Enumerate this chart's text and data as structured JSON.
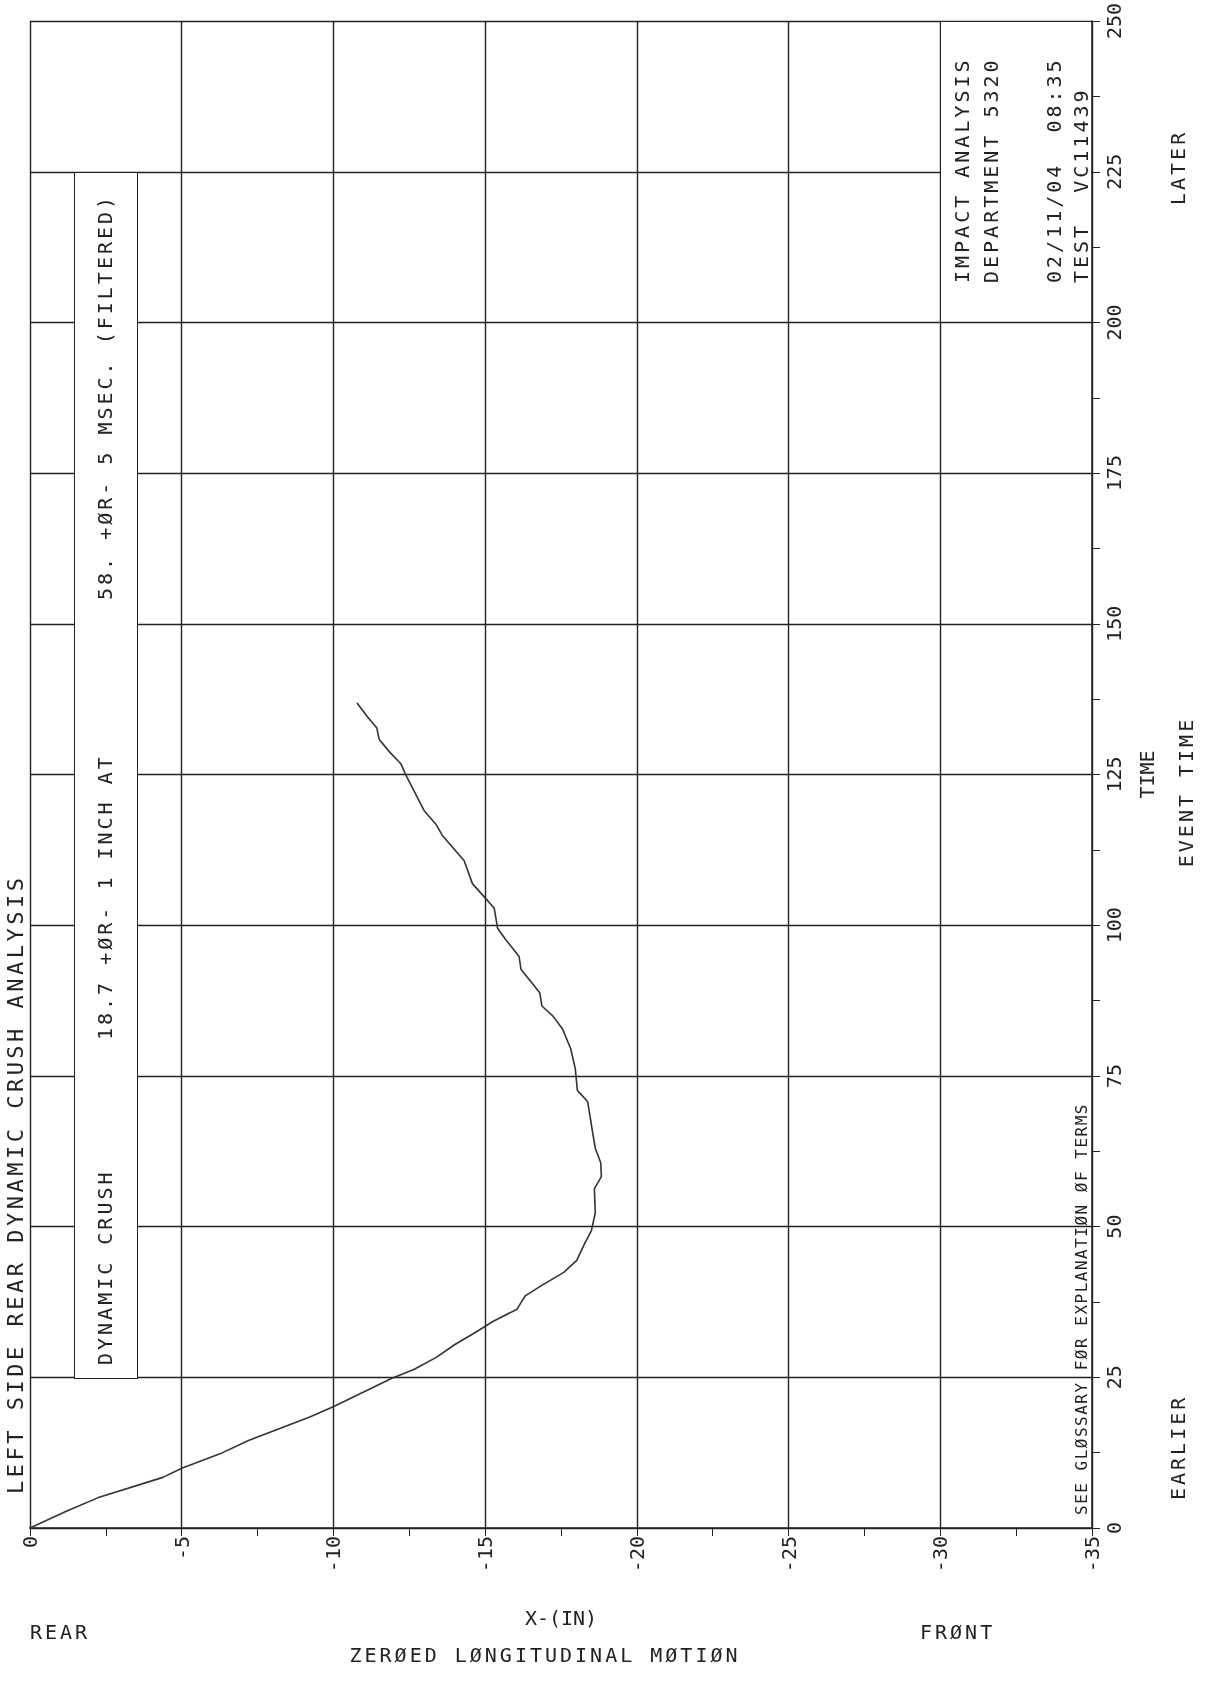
{
  "chart_data": {
    "type": "line",
    "title": "LEFT SIDE REAR DYNAMIC CRUSH ANALYSIS",
    "xlabel": "X-(IN)",
    "ylabel": "TIME",
    "annotations": [
      "ZERØED LØNGITUDINAL MØTIØN",
      "REAR",
      "FRØNT",
      "EVENT TIME",
      "EARLIER",
      "LATER",
      "SEE GLØSSARY FØR EXPLANATIØN ØF TERMS",
      "DYNAMIC CRUSH",
      "18.7 +ØR- 1 INCH AT",
      "58. +ØR- 5 MSEC. (FILTERED)",
      "IMPACT ANALYSIS",
      "DEPARTMENT 5320",
      "02/11/04  08:35",
      "TEST  VC11439"
    ],
    "x": [
      0,
      -1.16,
      -2.23,
      -4.38,
      -5.0,
      -6.26,
      -7.2,
      -9.22,
      -10.03,
      -11.91,
      -12.65,
      -13.39,
      -13.99,
      -14.66,
      -15.27,
      -16.05,
      -16.32,
      -16.88,
      -17.59,
      -18.02,
      -18.29,
      -18.5,
      -18.63,
      -18.6,
      -18.83,
      -18.81,
      -18.63,
      -18.52,
      -18.38,
      -18.04,
      -17.97,
      -17.82,
      -17.55,
      -17.22,
      -16.87,
      -16.8,
      -16.18,
      -16.12,
      -15.68,
      -15.41,
      -15.3,
      -14.97,
      -14.58,
      -14.31,
      -13.59,
      -13.37,
      -12.99,
      -12.38,
      -12.22,
      -11.84,
      -11.51,
      -11.43,
      -11.12,
      -10.79
    ],
    "series": [
      {
        "color": "#333333",
        "values": [
          0,
          2.7,
          5.0,
          8.4,
          9.9,
          12.3,
          14.5,
          18.4,
          20.2,
          24.8,
          26.3,
          28.3,
          30.4,
          32.4,
          34.3,
          36.3,
          38.5,
          40.3,
          42.4,
          44.4,
          47.3,
          49.3,
          52.3,
          56.3,
          58.3,
          60.6,
          63.0,
          66.3,
          70.7,
          72.6,
          76.2,
          79.5,
          82.8,
          85.0,
          86.6,
          88.8,
          92.7,
          94.8,
          97.6,
          99.5,
          102.8,
          104.7,
          106.9,
          110.7,
          114.9,
          116.8,
          119.0,
          125.0,
          126.8,
          128.8,
          130.8,
          132.7,
          134.6,
          136.8
        ]
      }
    ],
    "xlim": [
      0,
      -35
    ],
    "xticks": [
      0,
      {
        "value": -2.5,
        "label": null
      },
      -5,
      {
        "value": -7.5,
        "label": null
      },
      -10,
      {
        "value": -12.5,
        "label": null
      },
      -15,
      {
        "value": -17.5,
        "label": null
      },
      -20,
      {
        "value": -22.5,
        "label": null
      },
      -25,
      {
        "value": -27.5,
        "label": null
      },
      -30,
      {
        "value": -32.5,
        "label": null
      },
      -35
    ],
    "ylim": [
      0,
      250
    ],
    "yticks": [
      0,
      {
        "value": 12.5,
        "label": null
      },
      25,
      {
        "value": 37.5,
        "label": null
      },
      50,
      {
        "value": 62.5,
        "label": null
      },
      75,
      {
        "value": 87.5,
        "label": null
      },
      100,
      {
        "value": 112.5,
        "label": null
      },
      125,
      {
        "value": 137.5,
        "label": null
      },
      150,
      {
        "value": 162.5,
        "label": null
      },
      175,
      {
        "value": 187.5,
        "label": null
      },
      200,
      {
        "value": 212.5,
        "label": null
      },
      225,
      {
        "value": 237.5,
        "label": null
      },
      250
    ],
    "grid": true,
    "marker": "none",
    "line_style": "solid"
  }
}
